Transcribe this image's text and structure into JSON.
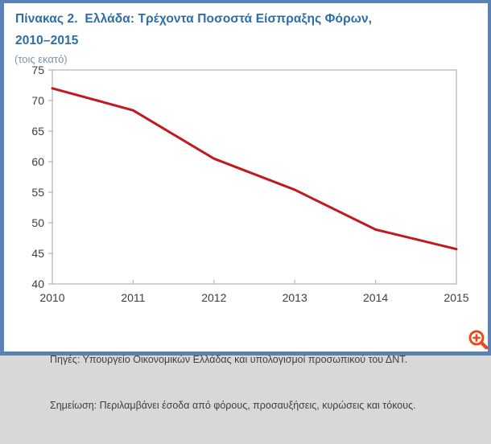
{
  "figure": {
    "title_line1": "Πίνακας 2.  Ελλάδα: Τρέχοντα Ποσοστά Είσπραξης Φόρων,",
    "title_line2": "2010–2015",
    "unit_label": "(τοις εκατό)"
  },
  "chart_data": {
    "type": "line",
    "title": "Πίνακας 2. Ελλάδα: Τρέχοντα Ποσοστά Είσπραξης Φόρων, 2010–2015",
    "ylabel": "(τοις εκατό)",
    "xlabel": "",
    "categories": [
      "2010",
      "2011",
      "2012",
      "2013",
      "2014",
      "2015"
    ],
    "values": [
      72.0,
      68.4,
      60.5,
      55.4,
      48.9,
      45.7
    ],
    "ylim": [
      40,
      75
    ],
    "ytick_step": 5,
    "grid": false,
    "legend": false,
    "line_color": "#c2181f",
    "axis_color": "#b5b5b5",
    "tick_text_color": "#3d3d3d"
  },
  "footnotes": {
    "sources": "Πηγές: Υπουργείο Οικονομικών Ελλάδας και υπολογισμοί προσωπικού του ΔΝΤ.",
    "note": "Σημείωση: Περιλαμβάνει έσοδα από φόρους, προσαυξήσεις, κυρώσεις και τόκους."
  },
  "icons": {
    "zoom_button": "magnifier-plus-icon"
  },
  "colors": {
    "frame_border": "#5b82b4",
    "title_text": "#2e6da4",
    "unit_text": "#7b93a6",
    "footnote_text": "#3f3f3f",
    "zoom_icon": "#e84b1d",
    "background": "#ffffff"
  }
}
